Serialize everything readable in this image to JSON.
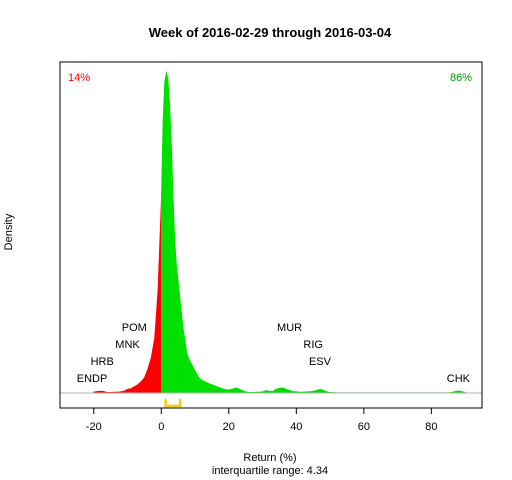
{
  "chart_data": {
    "type": "area",
    "title": "Week of 2016-02-29 through 2016-03-04",
    "xlabel": "Return (%)",
    "ylabel": "Density",
    "subtitle": "interquartile range: 4.34",
    "xlim": [
      -30,
      95
    ],
    "ylim": [
      0,
      1
    ],
    "x_ticks": [
      -20,
      0,
      20,
      40,
      60,
      80
    ],
    "grid": false,
    "legend": "none",
    "colors": {
      "negative": "#ff0000",
      "positive": "#00e000",
      "iqr": "#ffcc00",
      "baseline": "#b0b0b0"
    },
    "percent_negative": "14%",
    "percent_positive": "86%",
    "iqr_range": [
      1.3,
      5.6
    ],
    "density": {
      "x": [
        -20,
        -19,
        -18,
        -17,
        -16,
        -15,
        -14,
        -13,
        -12,
        -11,
        -10,
        -9,
        -8,
        -7,
        -6,
        -5,
        -4,
        -3,
        -2,
        -1,
        -0.5,
        0,
        0.5,
        1,
        1.5,
        2,
        2.5,
        3,
        3.5,
        4,
        4.5,
        5,
        5.5,
        6,
        6.5,
        7,
        7.5,
        8,
        8.5,
        9,
        10,
        11,
        12,
        13,
        14,
        15,
        16,
        17,
        18,
        19,
        20,
        21,
        22,
        23,
        24,
        25,
        26,
        27,
        28,
        29,
        30,
        31,
        32,
        33,
        34,
        35,
        36,
        37,
        38,
        39,
        40,
        41,
        42,
        43,
        44,
        45,
        46,
        47,
        48,
        49,
        50,
        52,
        55,
        60,
        65,
        70,
        75,
        80,
        85,
        86,
        87,
        88,
        89,
        90
      ],
      "y": [
        0.003,
        0.005,
        0.006,
        0.005,
        0.002,
        0.002,
        0.003,
        0.003,
        0.004,
        0.006,
        0.012,
        0.014,
        0.02,
        0.026,
        0.035,
        0.048,
        0.075,
        0.11,
        0.17,
        0.32,
        0.46,
        0.6,
        0.85,
        0.97,
        1.0,
        0.98,
        0.9,
        0.78,
        0.62,
        0.48,
        0.4,
        0.35,
        0.3,
        0.25,
        0.2,
        0.17,
        0.13,
        0.11,
        0.1,
        0.09,
        0.07,
        0.05,
        0.04,
        0.035,
        0.03,
        0.026,
        0.022,
        0.018,
        0.014,
        0.011,
        0.01,
        0.012,
        0.016,
        0.013,
        0.008,
        0.004,
        0.002,
        0.002,
        0.003,
        0.003,
        0.004,
        0.008,
        0.006,
        0.005,
        0.012,
        0.015,
        0.016,
        0.012,
        0.008,
        0.005,
        0.004,
        0.003,
        0.003,
        0.004,
        0.004,
        0.006,
        0.008,
        0.012,
        0.009,
        0.004,
        0.002,
        0.001,
        0.001,
        0.001,
        0.001,
        0.001,
        0.001,
        0.001,
        0.001,
        0.002,
        0.005,
        0.007,
        0.005,
        0.002
      ]
    },
    "annotations": [
      {
        "label": "ENDP",
        "x": -20.5,
        "row": 1
      },
      {
        "label": "HRB",
        "x": -17.5,
        "row": 2
      },
      {
        "label": "MNK",
        "x": -10,
        "row": 3
      },
      {
        "label": "POM",
        "x": -8,
        "row": 4
      },
      {
        "label": "MUR",
        "x": 38,
        "row": 4
      },
      {
        "label": "RIG",
        "x": 45,
        "row": 3
      },
      {
        "label": "ESV",
        "x": 47,
        "row": 2
      },
      {
        "label": "CHK",
        "x": 88,
        "row": 1
      }
    ]
  }
}
